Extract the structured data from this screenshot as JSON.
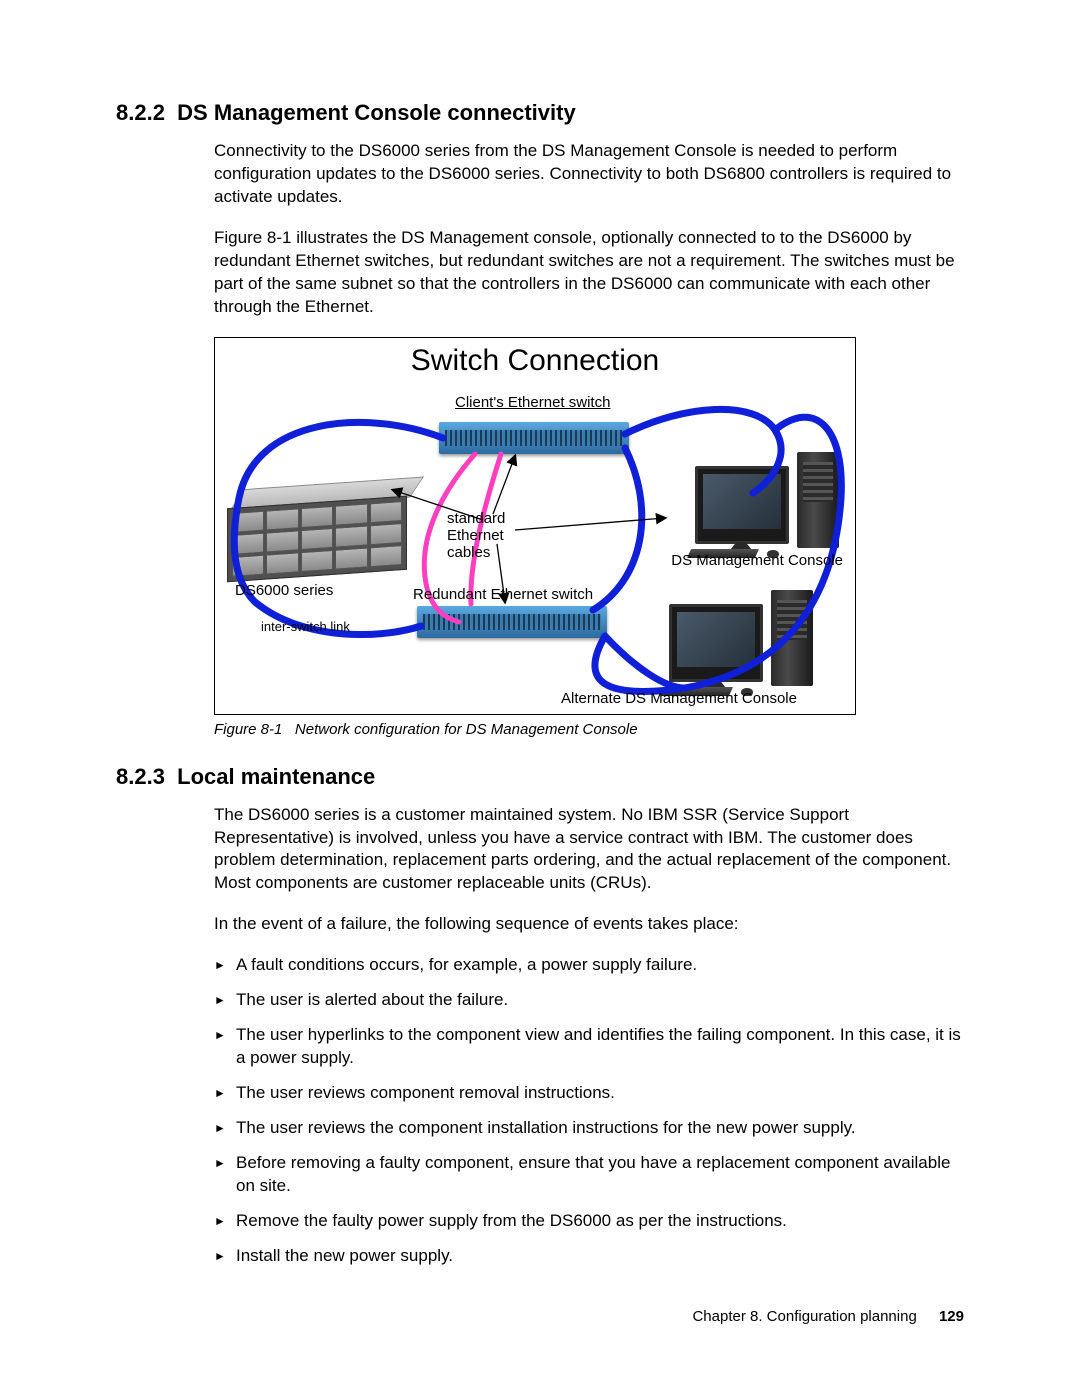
{
  "section1": {
    "number": "8.2.2",
    "title": "DS Management Console connectivity",
    "para1": "Connectivity to the DS6000 series from the DS Management Console is needed to perform configuration updates to the DS6000 series. Connectivity to both DS6800 controllers is required to activate updates.",
    "para2": "Figure 8-1 illustrates the DS Management console, optionally connected to to the DS6000 by redundant Ethernet switches, but redundant switches are not a requirement. The switches must be part of the same subnet so that the controllers in the DS6000 can communicate with each other through the Ethernet."
  },
  "figure": {
    "title": "Switch Connection",
    "client_switch": "Client's Ethernet switch",
    "std_eth1": "standard",
    "std_eth2": "Ethernet",
    "std_eth3": "cables",
    "ds6000": "DS6000 series",
    "interswitch": "inter-switch link",
    "redundant": "Redundant Ethernet switch",
    "dsmc": "DS Management Console",
    "alt_dsmc": "Alternate DS Management Console",
    "caption_label": "Figure 8-1",
    "caption_text": "Network configuration for DS Management Console",
    "colors": {
      "blue_cable": "#1020d8",
      "pink_cable": "#ff3fc0",
      "arrow": "#000000"
    }
  },
  "section2": {
    "number": "8.2.3",
    "title": "Local maintenance",
    "para1": "The DS6000 series is a customer maintained system. No IBM SSR (Service Support Representative) is involved, unless you have a service contract with IBM. The customer does problem determination, replacement parts ordering, and the actual replacement of the component. Most components are customer replaceable units (CRUs).",
    "para2": "In the event of a failure, the following sequence of events takes place:",
    "bullets": [
      "A fault conditions occurs, for example, a power supply failure.",
      "The user is alerted about the failure.",
      "The user hyperlinks to the component view and identifies the failing component. In this case, it is a power supply.",
      "The user reviews component removal instructions.",
      "The user reviews the component installation instructions for the new power supply.",
      "Before removing a faulty component, ensure that you have a replacement component available on site.",
      "Remove the faulty power supply from the DS6000 as per the instructions.",
      "Install the new power supply."
    ]
  },
  "footer": {
    "chapter": "Chapter 8. Configuration planning",
    "page": "129"
  }
}
